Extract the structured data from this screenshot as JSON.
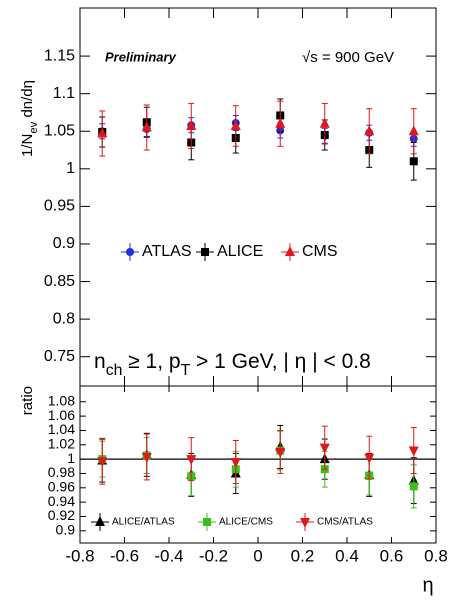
{
  "chart_data": [
    {
      "type": "scatter",
      "title": "Preliminary",
      "subtitle": "√s = 900 GeV",
      "y_label": [
        "1/N",
        "ev",
        " dn/dη"
      ],
      "annotation": [
        "n",
        "ch",
        " ≥ 1, p",
        "T",
        " > 1 GeV, | η | < 0.8"
      ],
      "x": [
        -0.7,
        -0.5,
        -0.3,
        -0.1,
        0.1,
        0.3,
        0.5,
        0.7
      ],
      "series": [
        {
          "name": "ATLAS",
          "color": "#1f2fe0",
          "marker": "circle",
          "values": [
            1.05,
            1.053,
            1.058,
            1.061,
            1.051,
            1.044,
            1.048,
            1.04
          ],
          "errors": [
            0.01,
            0.01,
            0.01,
            0.01,
            0.01,
            0.01,
            0.01,
            0.01
          ]
        },
        {
          "name": "ALICE",
          "color": "#000000",
          "marker": "square",
          "values": [
            1.049,
            1.062,
            1.035,
            1.041,
            1.071,
            1.045,
            1.025,
            1.01
          ],
          "errors": [
            0.02,
            0.02,
            0.023,
            0.02,
            0.022,
            0.02,
            0.023,
            0.025
          ]
        },
        {
          "name": "CMS",
          "color": "#e0181c",
          "marker": "triangle-up",
          "values": [
            1.047,
            1.055,
            1.057,
            1.057,
            1.06,
            1.06,
            1.05,
            1.05
          ],
          "errors": [
            0.03,
            0.03,
            0.03,
            0.027,
            0.03,
            0.027,
            0.03,
            0.03
          ]
        }
      ],
      "xlim": [
        -0.8,
        0.8
      ],
      "xticks": [
        -0.8,
        -0.6,
        -0.4,
        -0.2,
        0,
        0.2,
        0.4,
        0.6,
        0.8
      ],
      "ylim": [
        0.711,
        1.214
      ],
      "yticks": [
        0.75,
        0.8,
        0.85,
        0.9,
        0.95,
        1,
        1.05,
        1.1,
        1.15
      ]
    },
    {
      "type": "scatter",
      "y_label": "ratio",
      "x_label": "η",
      "hline": 1,
      "x": [
        -0.7,
        -0.5,
        -0.3,
        -0.1,
        0.1,
        0.3,
        0.5,
        0.7
      ],
      "series": [
        {
          "name": "ALICE/ATLAS",
          "color": "#000000",
          "marker": "triangle-up",
          "values": [
            0.998,
            1.006,
            0.978,
            0.98,
            1.017,
            1.0,
            0.978,
            0.97
          ],
          "errors": [
            0.03,
            0.03,
            0.03,
            0.028,
            0.03,
            0.028,
            0.03,
            0.032
          ]
        },
        {
          "name": "ALICE/CMS",
          "color": "#3cbf1a",
          "marker": "square",
          "values": [
            1.0,
            1.005,
            0.976,
            0.986,
            1.012,
            0.986,
            0.977,
            0.962
          ],
          "errors": [
            0.025,
            0.025,
            0.027,
            0.025,
            0.027,
            0.025,
            0.027,
            0.03
          ]
        },
        {
          "name": "CMS/ATLAS",
          "color": "#e0181c",
          "marker": "triangle-down",
          "values": [
            0.997,
            1.003,
            1.0,
            0.996,
            1.01,
            1.016,
            1.002,
            1.012
          ],
          "errors": [
            0.032,
            0.032,
            0.03,
            0.03,
            0.03,
            0.03,
            0.03,
            0.032
          ]
        }
      ],
      "xlim": [
        -0.8,
        0.8
      ],
      "xticks": [
        -0.8,
        -0.6,
        -0.4,
        -0.2,
        0,
        0.2,
        0.4,
        0.6,
        0.8
      ],
      "ylim": [
        0.883,
        1.102
      ],
      "yticks": [
        0.9,
        0.92,
        0.94,
        0.96,
        0.98,
        1,
        1.02,
        1.04,
        1.06,
        1.08
      ]
    }
  ]
}
